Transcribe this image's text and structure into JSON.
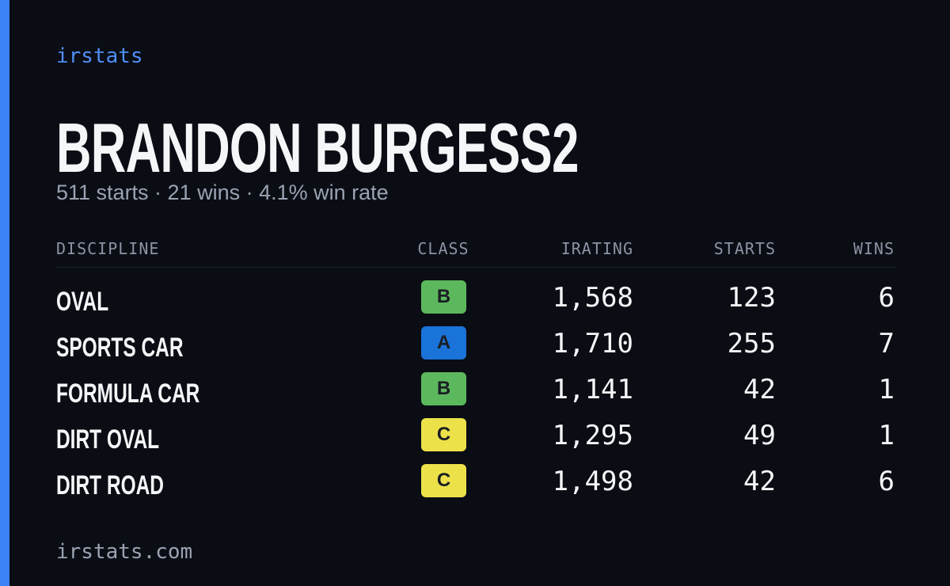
{
  "brand": "irstats",
  "title": "BRANDON BURGESS2",
  "subtitle": "511 starts · 21 wins · 4.1% win rate",
  "table": {
    "headers": [
      "DISCIPLINE",
      "CLASS",
      "IRATING",
      "STARTS",
      "WINS"
    ],
    "rows": [
      {
        "discipline": "OVAL",
        "class": "B",
        "class_color": "#5cb85c",
        "irating": "1,568",
        "starts": "123",
        "wins": "6"
      },
      {
        "discipline": "SPORTS CAR",
        "class": "A",
        "class_color": "#1a73d9",
        "irating": "1,710",
        "starts": "255",
        "wins": "7"
      },
      {
        "discipline": "FORMULA CAR",
        "class": "B",
        "class_color": "#5cb85c",
        "irating": "1,141",
        "starts": "42",
        "wins": "1"
      },
      {
        "discipline": "DIRT OVAL",
        "class": "C",
        "class_color": "#ede14a",
        "irating": "1,295",
        "starts": "49",
        "wins": "1"
      },
      {
        "discipline": "DIRT ROAD",
        "class": "C",
        "class_color": "#ede14a",
        "irating": "1,498",
        "starts": "42",
        "wins": "6"
      }
    ]
  },
  "footer": "irstats.com"
}
